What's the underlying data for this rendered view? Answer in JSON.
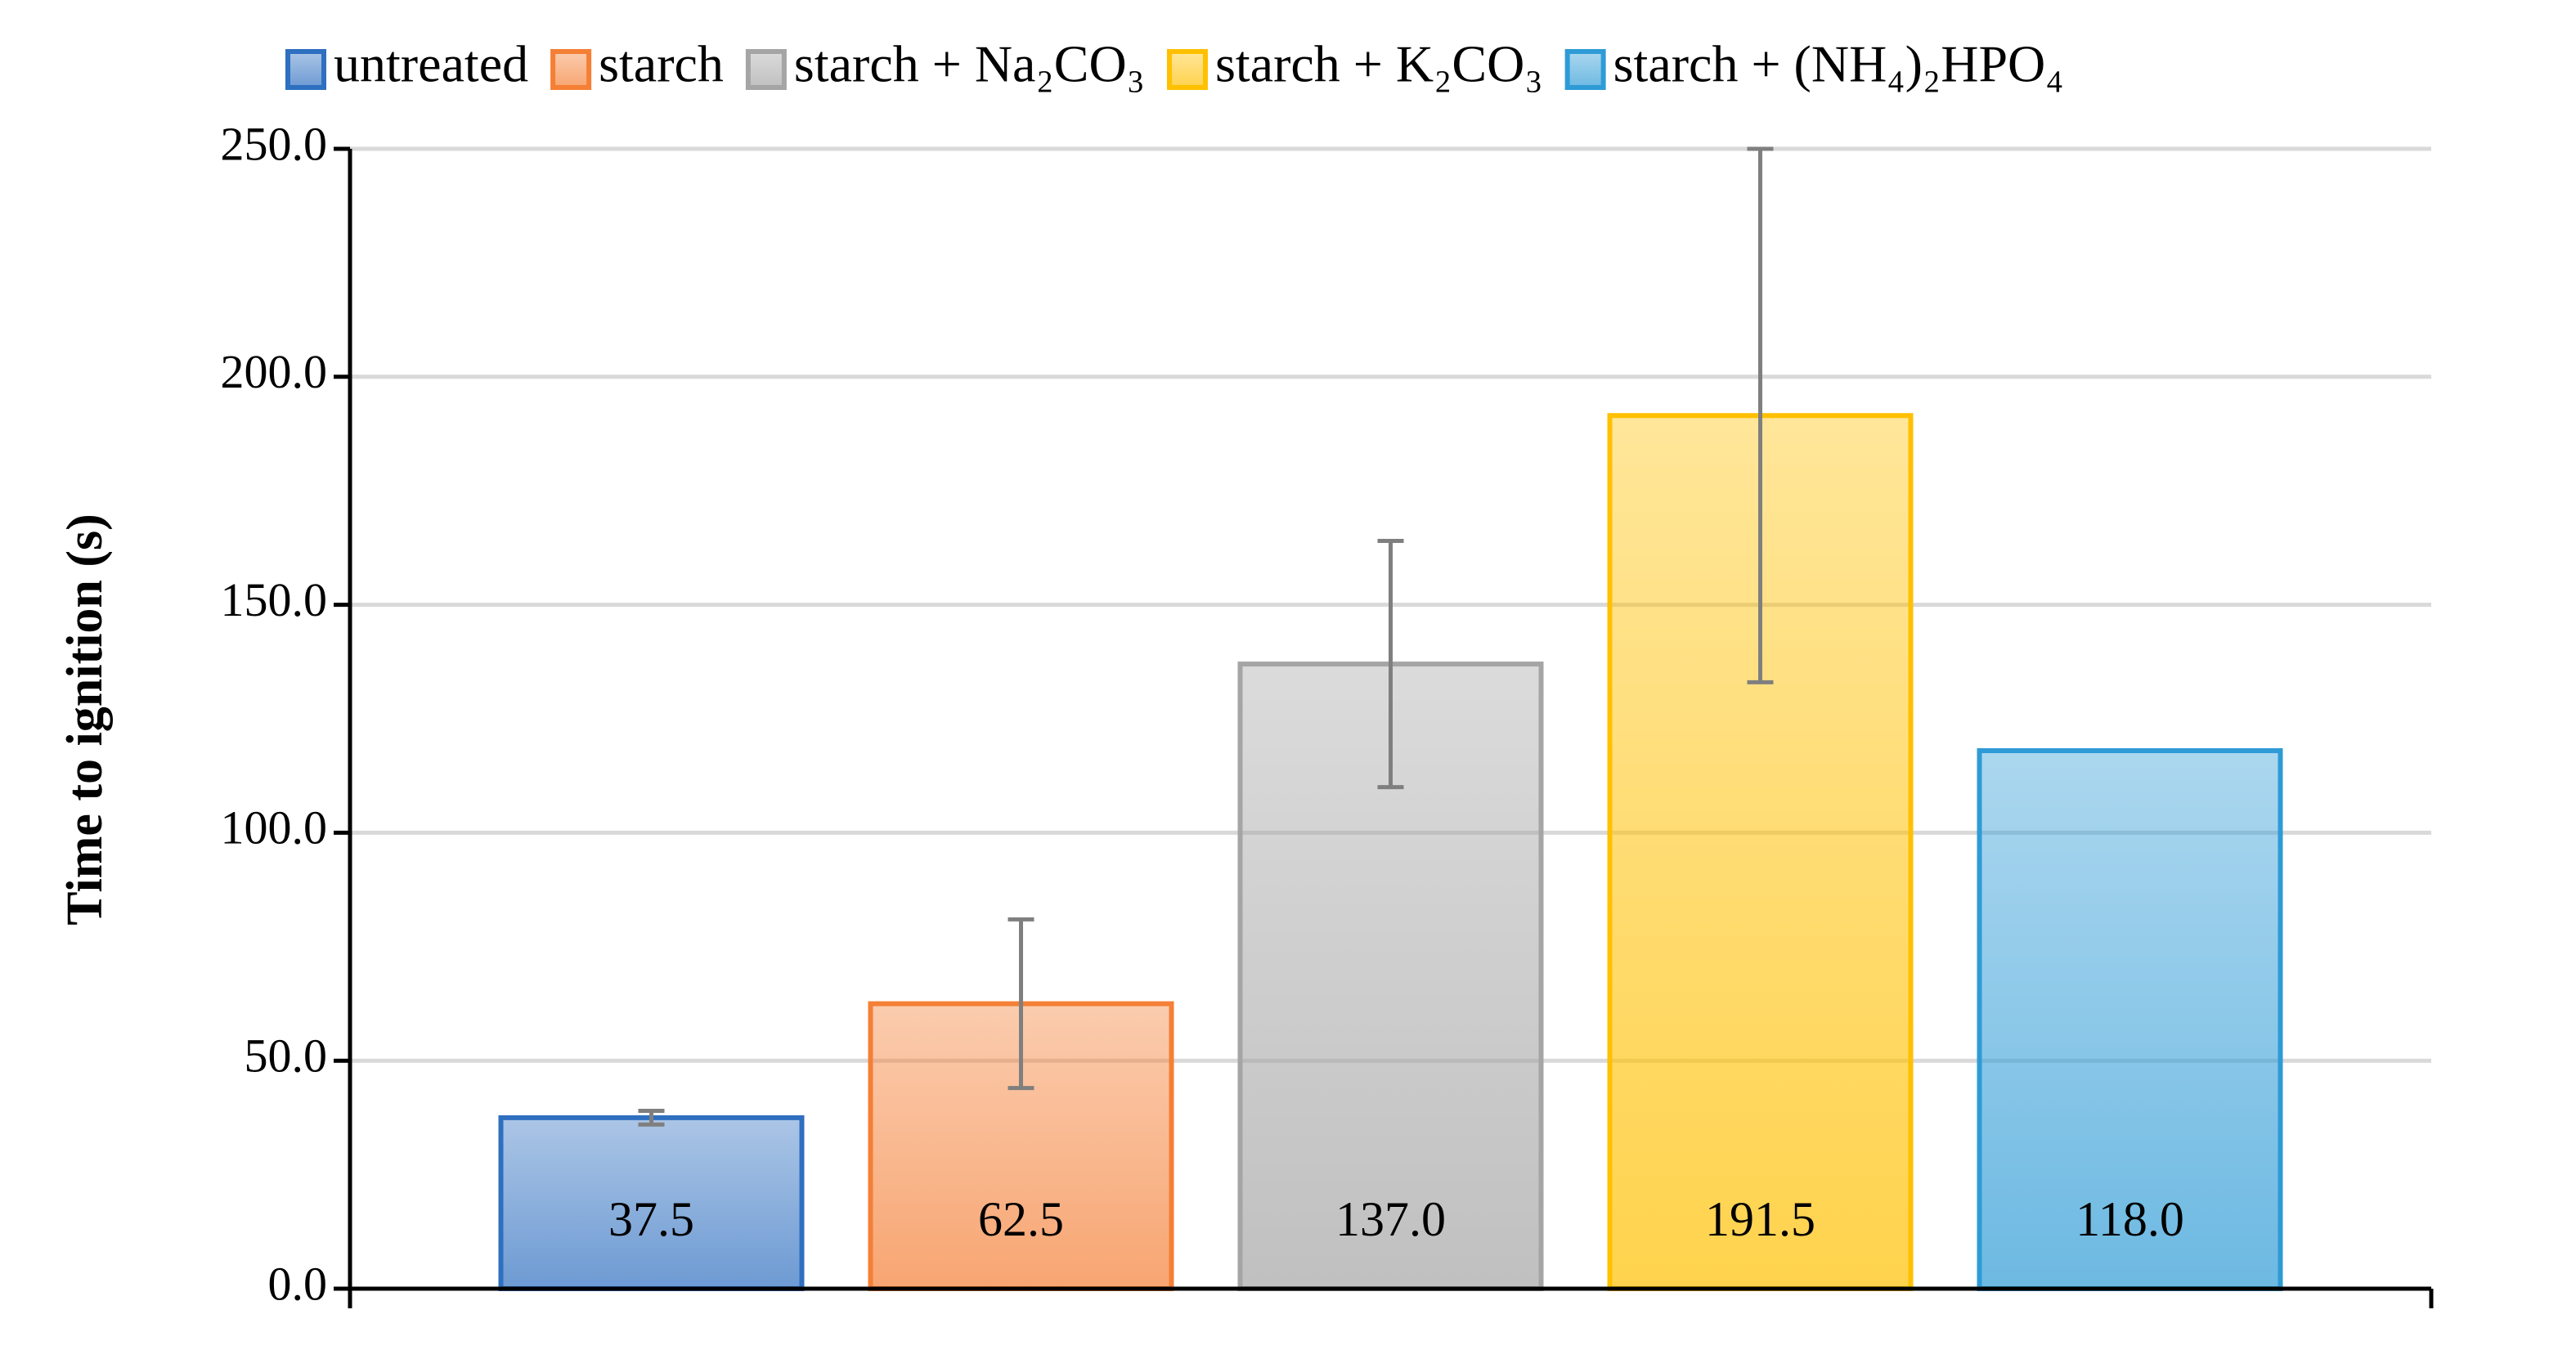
{
  "chart_data": {
    "type": "bar",
    "y_label": "Time to ignition (s)",
    "categories": [
      null
    ],
    "series": [
      {
        "name": "untreated",
        "color": "#2e6fc0",
        "values": [
          37.5
        ],
        "value_labels": [
          "37.5"
        ],
        "errors": [
          1.5
        ]
      },
      {
        "name": "starch",
        "color": "#f47f35",
        "values": [
          62.5
        ],
        "value_labels": [
          "62.5"
        ],
        "errors": [
          18.5
        ]
      },
      {
        "name": "starch + Na₂CO₃",
        "color": "#a5a5a5",
        "values": [
          137.0
        ],
        "value_labels": [
          "137.0"
        ],
        "errors": [
          27
        ]
      },
      {
        "name": "starch + K₂CO₃",
        "color": "#ffc000",
        "values": [
          191.5
        ],
        "value_labels": [
          "191.5"
        ],
        "errors": [
          58.5
        ]
      },
      {
        "name": "starch + (NH₄)₂HPO₄",
        "color": "#2e9bd6",
        "values": [
          118.0
        ],
        "value_labels": [
          "118.0"
        ],
        "errors": [
          null
        ]
      }
    ],
    "ylim": [
      0,
      250
    ],
    "yticks": [
      {
        "value": 0,
        "label": "0.0"
      },
      {
        "value": 50,
        "label": "50.0"
      },
      {
        "value": 100,
        "label": "100.0"
      },
      {
        "value": 150,
        "label": "150.0"
      },
      {
        "value": 200,
        "label": "200.0"
      },
      {
        "value": 250,
        "label": "250.0"
      }
    ],
    "grid": true,
    "legend": "top"
  }
}
